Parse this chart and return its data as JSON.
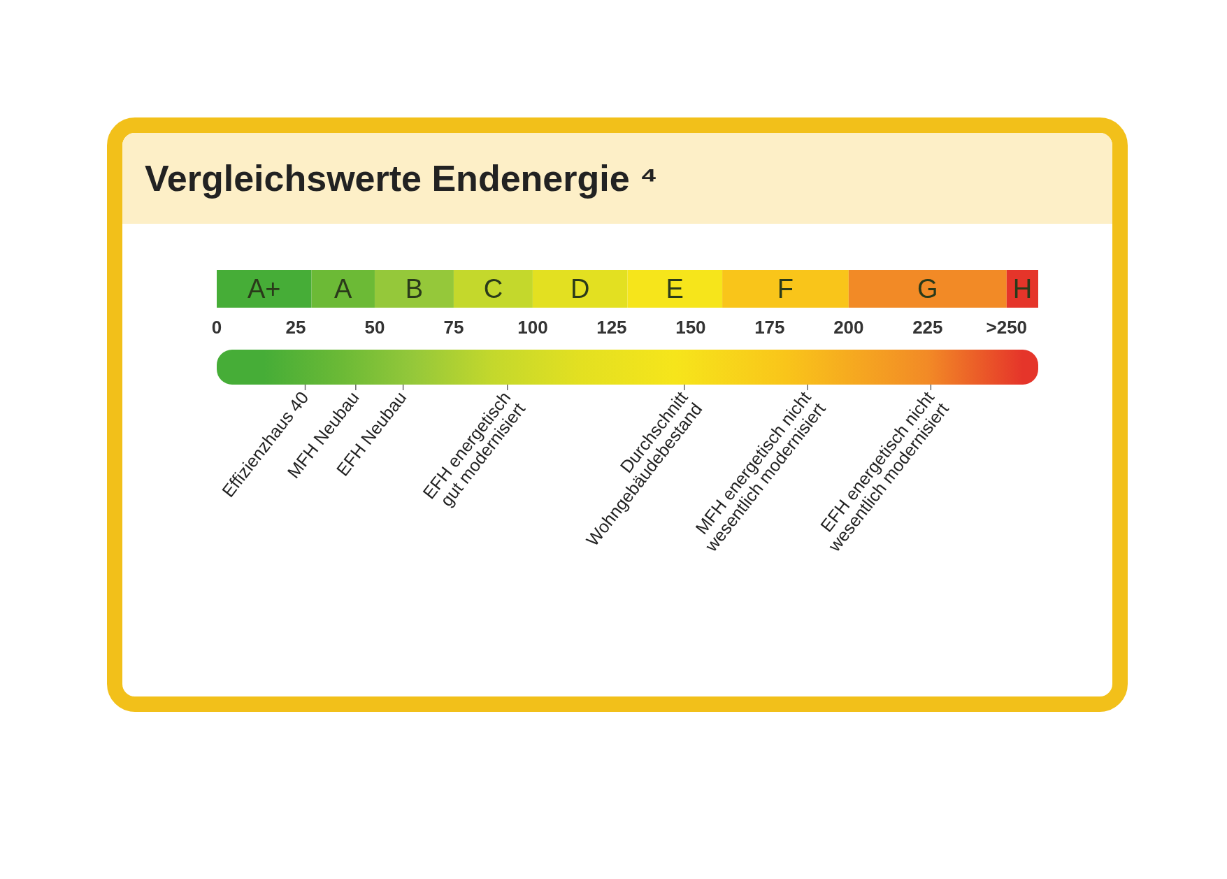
{
  "chart_data": {
    "type": "bar",
    "orientation": "horizontal",
    "stacked": true,
    "title": "Vergleichswerte Endenergie ⁴",
    "categories": [
      null
    ],
    "xlim": [
      0,
      260
    ],
    "xticks": [
      0,
      25,
      50,
      75,
      100,
      125,
      150,
      175,
      200,
      225,
      {
        "value": 250,
        "label": ">250"
      }
    ],
    "series": [
      {
        "name": "A+",
        "color": "#46ad37",
        "values": [
          30
        ]
      },
      {
        "name": "A",
        "color": "#6cba36",
        "values": [
          20
        ]
      },
      {
        "name": "B",
        "color": "#95c83a",
        "values": [
          25
        ]
      },
      {
        "name": "C",
        "color": "#c4d82c",
        "values": [
          25
        ]
      },
      {
        "name": "D",
        "color": "#e3e021",
        "values": [
          30
        ]
      },
      {
        "name": "E",
        "color": "#f6e51b",
        "values": [
          30
        ]
      },
      {
        "name": "F",
        "color": "#f9c51a",
        "values": [
          40
        ]
      },
      {
        "name": "G",
        "color": "#f28a26",
        "values": [
          50
        ]
      },
      {
        "name": "H",
        "color": "#e5352a",
        "values": [
          10
        ]
      }
    ],
    "ref_lines": [
      {
        "axis": "x",
        "value": 28,
        "label": "Effizienzhaus 40"
      },
      {
        "axis": "x",
        "value": 44,
        "label": "MFH Neubau"
      },
      {
        "axis": "x",
        "value": 59,
        "label": "EFH Neubau"
      },
      {
        "axis": "x",
        "value": 92,
        "label": "EFH energetisch\ngut modernisiert"
      },
      {
        "axis": "x",
        "value": 148,
        "label": "Durchschnitt\nWohngebäudebestand"
      },
      {
        "axis": "x",
        "value": 187,
        "label": "MFH energetisch nicht\nwesentlich modernisiert"
      },
      {
        "axis": "x",
        "value": 226,
        "label": "EFH energetisch nicht\nwesentlich modernisiert"
      }
    ]
  }
}
